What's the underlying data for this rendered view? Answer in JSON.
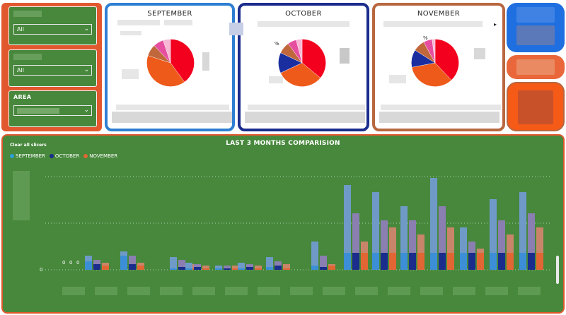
{
  "slicers": [
    {
      "title": "",
      "value": "All"
    },
    {
      "title": "",
      "value": "All"
    },
    {
      "title": "AREA",
      "value": ""
    }
  ],
  "months": [
    {
      "name": "SEPTEMBER",
      "percent_label": "",
      "border_color": "#2e7fd2"
    },
    {
      "name": "OCTOBER",
      "percent_label": "%",
      "border_color": "#1a2c8c"
    },
    {
      "name": "NOVEMBER",
      "percent_label": "%",
      "border_color": "#b8673f"
    }
  ],
  "pie_colors": [
    "#f2001d",
    "#ed5a1a",
    "#1b2ea0",
    "#c0673c",
    "#e64fa0",
    "#f7b7d5"
  ],
  "chart": {
    "title": "LAST 3 MONTHS COMPARISION",
    "clear_label": "Clear all slicers",
    "zero_tick": "0",
    "start_labels": [
      "0",
      "0",
      "0"
    ],
    "legend": [
      {
        "label": "SEPTEMBER",
        "color": "#2aa0d8"
      },
      {
        "label": "OCTOBER",
        "color": "#1a2c8c"
      },
      {
        "label": "NOVEMBER",
        "color": "#e26634"
      }
    ]
  },
  "colors": {
    "panel_orange": "#e2582e",
    "panel_green": "#47883c",
    "kpi_blue": "#1f6fe0",
    "kpi_orange": "#f55a17"
  },
  "icons": [
    "chevron-down-icon",
    "legend-dot-icon",
    "more-arrow-icon"
  ]
}
